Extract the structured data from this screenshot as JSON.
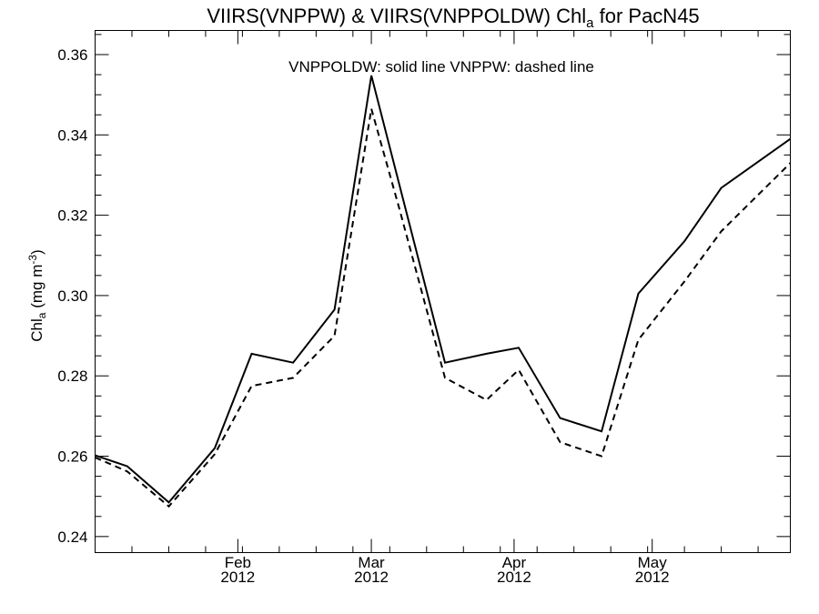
{
  "chart_data": {
    "type": "line",
    "title": {
      "main": "VIIRS(VNPPW) & VIIRS(VNPPOLDW)  Chl",
      "sub": "a",
      "suffix": " for PacN45"
    },
    "annotation": "VNPPOLDW: solid line   VNPPW: dashed line",
    "ylabel": {
      "main": "Chl",
      "sub": "a",
      "unit_open": " (mg m",
      "unit_sup": "-3",
      "unit_close": ")"
    },
    "ylim": [
      0.236,
      0.366
    ],
    "yticks": [
      0.24,
      0.26,
      0.28,
      0.3,
      0.32,
      0.34,
      0.36
    ],
    "ytick_labels": [
      "0.24",
      "0.26",
      "0.28",
      "0.30",
      "0.32",
      "0.34",
      "0.36"
    ],
    "xlim": [
      "2012-01-01",
      "2012-05-31"
    ],
    "xticks": [
      {
        "date": "2012-02-01",
        "month": "Feb",
        "year": "2012"
      },
      {
        "date": "2012-03-01",
        "month": "Mar",
        "year": "2012"
      },
      {
        "date": "2012-04-01",
        "month": "Apr",
        "year": "2012"
      },
      {
        "date": "2012-05-01",
        "month": "May",
        "year": "2012"
      }
    ],
    "x": [
      "2012-01-01",
      "2012-01-09",
      "2012-01-17",
      "2012-01-25",
      "2012-02-02",
      "2012-02-10",
      "2012-02-18",
      "2012-02-26",
      "2012-03-05",
      "2012-03-13",
      "2012-03-21",
      "2012-03-29",
      "2012-04-06",
      "2012-04-14",
      "2012-04-22",
      "2012-04-30",
      "2012-05-08",
      "2012-05-16",
      "2012-05-24",
      "2012-05-31"
    ],
    "series": [
      {
        "style": "solid",
        "color": "#000000",
        "points": [
          [
            "2012-01-01",
            0.2602
          ],
          [
            "2012-01-08",
            0.2575
          ],
          [
            "2012-01-17",
            0.2485
          ],
          [
            "2012-01-27",
            0.262
          ],
          [
            "2012-02-04",
            0.2855
          ],
          [
            "2012-02-13",
            0.2833
          ],
          [
            "2012-02-22",
            0.2965
          ],
          [
            "2012-03-01",
            0.3548
          ],
          [
            "2012-03-07",
            0.328
          ],
          [
            "2012-03-17",
            0.2833
          ],
          [
            "2012-03-26",
            0.2855
          ],
          [
            "2012-04-02",
            0.287
          ],
          [
            "2012-04-11",
            0.2695
          ],
          [
            "2012-04-20",
            0.2662
          ],
          [
            "2012-04-28",
            0.3005
          ],
          [
            "2012-05-08",
            0.3135
          ],
          [
            "2012-05-16",
            0.3268
          ],
          [
            "2012-05-31",
            0.339
          ]
        ]
      },
      {
        "style": "dashed",
        "color": "#000000",
        "points": [
          [
            "2012-01-01",
            0.2597
          ],
          [
            "2012-01-08",
            0.2562
          ],
          [
            "2012-01-17",
            0.2475
          ],
          [
            "2012-01-27",
            0.2605
          ],
          [
            "2012-02-04",
            0.2775
          ],
          [
            "2012-02-13",
            0.2795
          ],
          [
            "2012-02-22",
            0.29
          ],
          [
            "2012-03-01",
            0.3465
          ],
          [
            "2012-03-07",
            0.322
          ],
          [
            "2012-03-17",
            0.2795
          ],
          [
            "2012-03-26",
            0.274
          ],
          [
            "2012-04-02",
            0.2815
          ],
          [
            "2012-04-11",
            0.2635
          ],
          [
            "2012-04-20",
            0.26
          ],
          [
            "2012-04-28",
            0.289
          ],
          [
            "2012-05-08",
            0.3035
          ],
          [
            "2012-05-16",
            0.316
          ],
          [
            "2012-05-31",
            0.333
          ]
        ]
      }
    ]
  }
}
